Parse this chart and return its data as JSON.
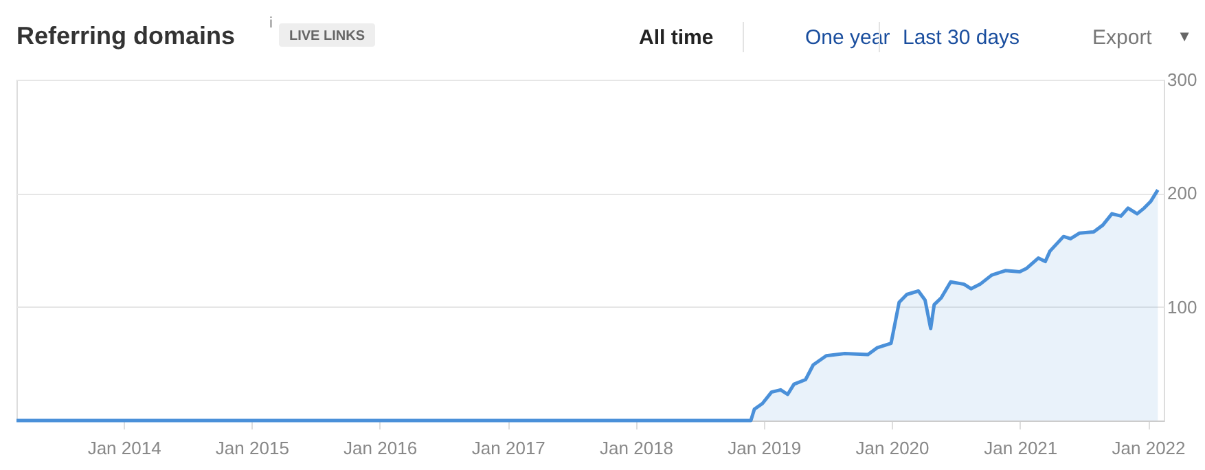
{
  "chart_data": {
    "type": "area",
    "title": "Referring domains",
    "subtitle": "LIVE LINKS",
    "annotations": [
      "i",
      "All time",
      "One year",
      "Last 30 days",
      "Export",
      "▼"
    ],
    "x": [
      "2013-03-01",
      "2018-11-25",
      "2018-12-05",
      "2018-12-28",
      "2019-01-23",
      "2019-02-18",
      "2019-03-10",
      "2019-03-28",
      "2019-04-30",
      "2019-05-22",
      "2019-06-28",
      "2019-08-20",
      "2019-10-25",
      "2019-11-20",
      "2019-12-30",
      "2020-01-22",
      "2020-02-13",
      "2020-03-17",
      "2020-04-05",
      "2020-04-21",
      "2020-05-01",
      "2020-05-21",
      "2020-06-17",
      "2020-07-25",
      "2020-08-14",
      "2020-09-09",
      "2020-10-12",
      "2020-11-20",
      "2020-12-31",
      "2021-01-20",
      "2021-02-22",
      "2021-03-14",
      "2021-03-27",
      "2021-05-05",
      "2021-05-25",
      "2021-06-20",
      "2021-07-30",
      "2021-08-25",
      "2021-09-20",
      "2021-10-16",
      "2021-11-05",
      "2021-12-01",
      "2021-12-21",
      "2022-01-09",
      "2022-01-29"
    ],
    "series": [
      {
        "color": "#4a90d9",
        "values": [
          0,
          0,
          10,
          15,
          25,
          27,
          23,
          32,
          36,
          49,
          57,
          59,
          58,
          64,
          68,
          104,
          111,
          114,
          106,
          81,
          102,
          108,
          122,
          120,
          116,
          120,
          128,
          132,
          131,
          134,
          143,
          140,
          149,
          162,
          160,
          165,
          166,
          172,
          182,
          180,
          187,
          182,
          187,
          193,
          203
        ]
      }
    ],
    "xlim": [
      "2013-03-01",
      "2022-02-15"
    ],
    "xticks": [
      {
        "value": "2014-01",
        "label": "Jan 2014"
      },
      {
        "value": "2015-01",
        "label": "Jan 2015"
      },
      {
        "value": "2016-01",
        "label": "Jan 2016"
      },
      {
        "value": "2017-01",
        "label": "Jan 2017"
      },
      {
        "value": "2018-01",
        "label": "Jan 2018"
      },
      {
        "value": "2019-01",
        "label": "Jan 2019"
      },
      {
        "value": "2020-01",
        "label": "Jan 2020"
      },
      {
        "value": "2021-01",
        "label": "Jan 2021"
      },
      {
        "value": "2022-01",
        "label": "Jan 2022"
      }
    ],
    "ylim": [
      0,
      300
    ],
    "yticks": [
      100,
      200,
      300
    ],
    "grid": "y",
    "line_style": "solid",
    "marker": "none"
  }
}
